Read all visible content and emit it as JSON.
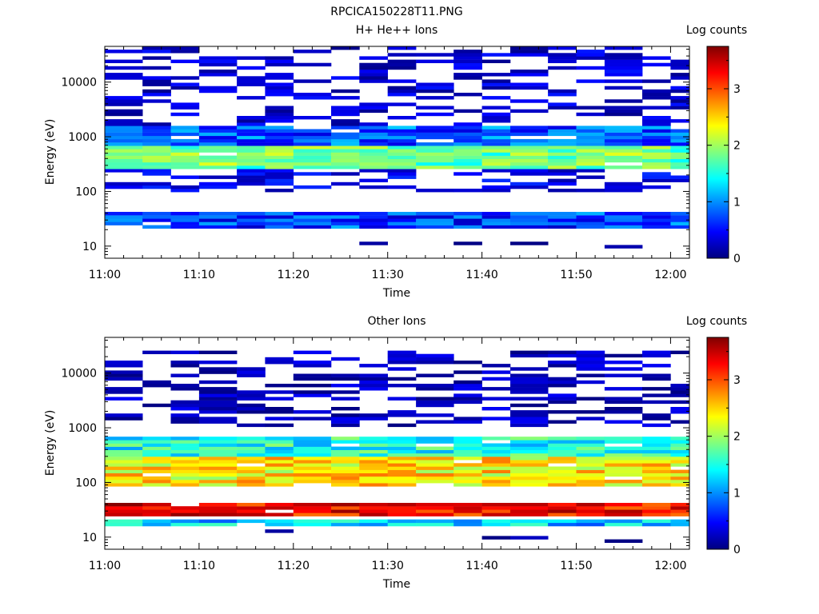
{
  "figure": {
    "title": "RPCICA150228T11.PNG",
    "colormap_stops": [
      "#00007f",
      "#0000ff",
      "#007fff",
      "#00ffff",
      "#7fff7f",
      "#ffff00",
      "#ff7f00",
      "#ff0000",
      "#7f0000"
    ]
  },
  "chart_data": [
    {
      "type": "heatmap",
      "title": "H+ He++ Ions",
      "xlabel": "Time",
      "ylabel": "Energy (eV)",
      "y_scale": "log",
      "ylim": [
        6,
        45000
      ],
      "x_range": [
        "11:00",
        "12:02"
      ],
      "x_ticks": [
        "11:00",
        "11:10",
        "11:20",
        "11:30",
        "11:40",
        "11:50",
        "12:00"
      ],
      "y_ticks": [
        "10",
        "100",
        "1000",
        "10000"
      ],
      "colorbar": {
        "label": "Log counts",
        "range": [
          0,
          3.75
        ],
        "ticks": [
          "0",
          "1",
          "2",
          "3"
        ]
      },
      "scan_columns": [
        "11:00",
        "11:04",
        "11:07",
        "11:10",
        "11:14",
        "11:17",
        "11:20",
        "11:24",
        "11:27",
        "11:30",
        "11:33",
        "11:37",
        "11:40",
        "11:43",
        "11:47",
        "11:50",
        "11:53",
        "11:57",
        "12:00"
      ],
      "signal_profile": {
        "description_levels": [
          {
            "energy_range_ev": [
              1500,
              45000
            ],
            "typical_log_counts": 0.3,
            "coverage": "sparse"
          },
          {
            "energy_range_ev": [
              700,
              1500
            ],
            "typical_log_counts": 0.8
          },
          {
            "energy_range_ev": [
              250,
              700
            ],
            "typical_log_counts": 1.8
          },
          {
            "energy_range_ev": [
              100,
              250
            ],
            "typical_log_counts": 0.4,
            "coverage": "sparse"
          },
          {
            "energy_range_ev": [
              20,
              45
            ],
            "typical_log_counts": 0.7
          },
          {
            "energy_range_ev": [
              8,
              12
            ],
            "typical_log_counts": 0.1,
            "coverage": "isolated"
          }
        ],
        "peak_energy_ev": 400,
        "peak_log_counts": 2.1
      }
    },
    {
      "type": "heatmap",
      "title": "Other Ions",
      "xlabel": "Time",
      "ylabel": "Energy (eV)",
      "y_scale": "log",
      "ylim": [
        6,
        45000
      ],
      "x_range": [
        "11:00",
        "12:02"
      ],
      "x_ticks": [
        "11:00",
        "11:10",
        "11:20",
        "11:30",
        "11:40",
        "11:50",
        "12:00"
      ],
      "y_ticks": [
        "10",
        "100",
        "1000",
        "10000"
      ],
      "colorbar": {
        "label": "Log counts",
        "range": [
          0,
          3.75
        ],
        "ticks": [
          "0",
          "1",
          "2",
          "3"
        ]
      },
      "scan_columns": [
        "11:00",
        "11:04",
        "11:07",
        "11:10",
        "11:14",
        "11:17",
        "11:20",
        "11:24",
        "11:27",
        "11:30",
        "11:33",
        "11:37",
        "11:40",
        "11:43",
        "11:47",
        "11:50",
        "11:53",
        "11:57",
        "12:00"
      ],
      "signal_profile": {
        "description_levels": [
          {
            "energy_range_ev": [
              1000,
              25000
            ],
            "typical_log_counts": 0.2,
            "coverage": "sparse"
          },
          {
            "energy_range_ev": [
              300,
              700
            ],
            "typical_log_counts": 1.5
          },
          {
            "energy_range_ev": [
              80,
              300
            ],
            "typical_log_counts": 2.4
          },
          {
            "energy_range_ev": [
              25,
              40
            ],
            "typical_log_counts": 3.3
          },
          {
            "energy_range_ev": [
              15,
              22
            ],
            "typical_log_counts": 1.2
          },
          {
            "energy_range_ev": [
              8,
              15
            ],
            "typical_log_counts": 0.1,
            "coverage": "isolated"
          }
        ],
        "peak_energy_ev": 32,
        "peak_log_counts": 3.6
      }
    }
  ]
}
